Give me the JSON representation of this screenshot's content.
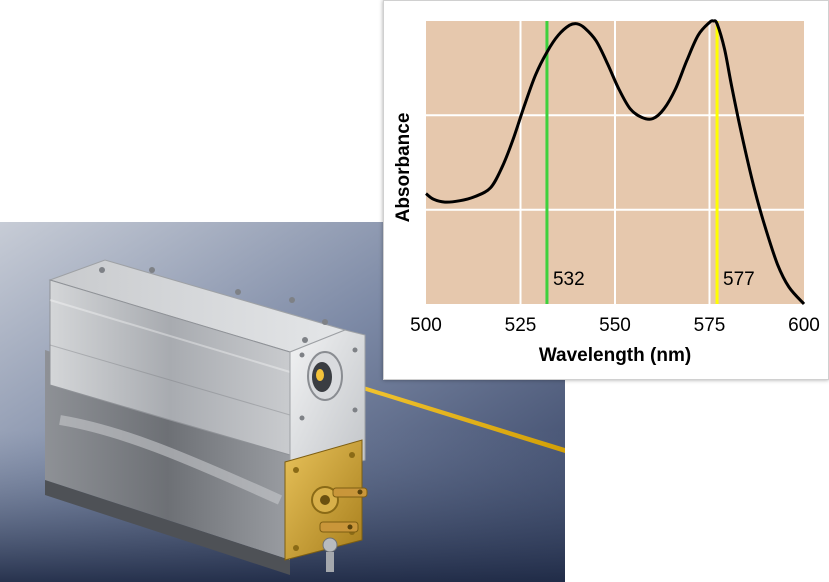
{
  "colors": {
    "plot_background": "#e6c8ad",
    "grid": "#ffffff",
    "curve": "#000000",
    "marker_532": "#3dd13d",
    "marker_577": "#ffff00",
    "beam": "#e6b400",
    "housing_metal": "#b9bcc0",
    "gold_plate": "#c9a032",
    "photo_background": "#5a6a8a"
  },
  "icons": {
    "photo": "laser-module-photo"
  },
  "chart_data": {
    "type": "line",
    "title": "",
    "xlabel": "Wavelength (nm)",
    "ylabel": "Absorbance",
    "xlim": [
      500,
      600
    ],
    "ylim": [
      0,
      1
    ],
    "xticks": [
      500,
      525,
      550,
      575,
      600
    ],
    "xtick_labels": [
      "500",
      "525",
      "550",
      "575",
      "600"
    ],
    "yticks": [
      0.333,
      0.667
    ],
    "grid": true,
    "series": [
      {
        "name": "",
        "x": [
          500,
          502,
          505,
          509,
          513,
          517,
          520,
          523,
          526,
          529,
          532,
          535,
          538,
          540,
          542,
          545,
          548,
          551,
          554,
          557,
          560,
          563,
          566,
          569,
          572,
          575,
          576,
          577,
          579,
          581,
          584,
          587,
          590,
          593,
          596,
          600
        ],
        "y": [
          0.39,
          0.37,
          0.36,
          0.365,
          0.38,
          0.41,
          0.48,
          0.58,
          0.7,
          0.81,
          0.89,
          0.95,
          0.985,
          0.99,
          0.975,
          0.93,
          0.85,
          0.76,
          0.69,
          0.66,
          0.655,
          0.69,
          0.76,
          0.86,
          0.95,
          0.995,
          1.0,
          0.99,
          0.9,
          0.76,
          0.57,
          0.4,
          0.26,
          0.14,
          0.06,
          0.0
        ]
      }
    ],
    "markers": [
      {
        "x": 532,
        "label": "532"
      },
      {
        "x": 577,
        "label": "577"
      }
    ]
  }
}
